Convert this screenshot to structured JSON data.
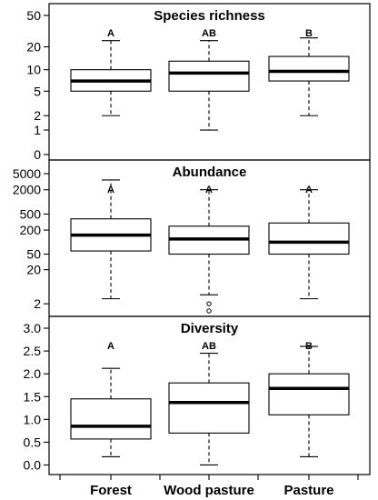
{
  "chart_data": {
    "type": "boxplot",
    "categories": [
      "Forest",
      "Wood pasture",
      "Pasture"
    ],
    "panels": [
      {
        "title": "Species richness",
        "scale": "log1p",
        "ticks": [
          "0",
          "1",
          "2",
          "5",
          "10",
          "20",
          "50"
        ],
        "ylim": [
          0,
          60
        ],
        "letters": [
          "A",
          "AB",
          "B"
        ],
        "boxes": [
          {
            "min": 2,
            "q1": 5,
            "median": 7,
            "q3": 10,
            "max": 24,
            "outliers": []
          },
          {
            "min": 1,
            "q1": 5,
            "median": 9,
            "q3": 13,
            "max": 24,
            "outliers": []
          },
          {
            "min": 2,
            "q1": 7,
            "median": 9.5,
            "q3": 15,
            "max": 26,
            "outliers": []
          }
        ]
      },
      {
        "title": "Abundance",
        "scale": "log1p",
        "ticks": [
          "2",
          "20",
          "50",
          "200",
          "500",
          "2000",
          "5000"
        ],
        "ylim": [
          1,
          8000
        ],
        "letters": [
          "A",
          "A",
          "A"
        ],
        "boxes": [
          {
            "min": 3,
            "q1": 60,
            "median": 150,
            "q3": 380,
            "max": 3500,
            "outliers": []
          },
          {
            "min": 4,
            "q1": 50,
            "median": 120,
            "q3": 250,
            "max": 2000,
            "outliers": [
              2,
              1
            ]
          },
          {
            "min": 3,
            "q1": 50,
            "median": 100,
            "q3": 300,
            "max": 2000,
            "outliers": []
          }
        ]
      },
      {
        "title": "Diversity",
        "scale": "linear",
        "ticks": [
          "0.0",
          "0.5",
          "1.0",
          "1.5",
          "2.0",
          "2.5",
          "3.0"
        ],
        "ylim": [
          -0.09,
          3.14
        ],
        "letters": [
          "A",
          "AB",
          "B"
        ],
        "boxes": [
          {
            "min": 0.18,
            "q1": 0.57,
            "median": 0.85,
            "q3": 1.45,
            "max": 2.12,
            "outliers": []
          },
          {
            "min": 0.0,
            "q1": 0.7,
            "median": 1.37,
            "q3": 1.8,
            "max": 2.45,
            "outliers": []
          },
          {
            "min": 0.18,
            "q1": 1.1,
            "median": 1.68,
            "q3": 2.0,
            "max": 2.6,
            "outliers": []
          }
        ]
      }
    ]
  }
}
